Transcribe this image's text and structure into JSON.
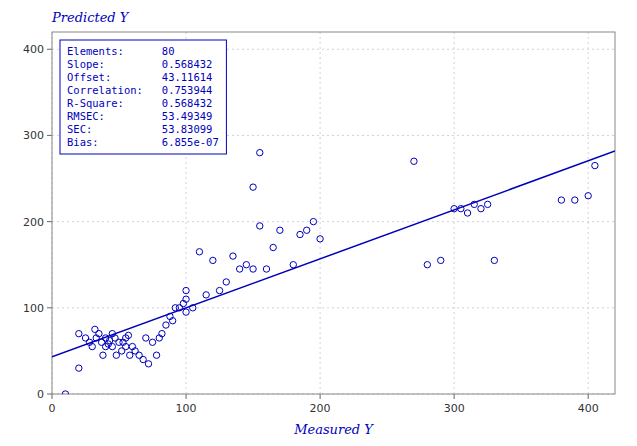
{
  "chart_data": {
    "type": "scatter",
    "title": "Predicted Y",
    "x_label": "Measured Y",
    "color": "#0000bb",
    "grid": true,
    "xlim": [
      0,
      420
    ],
    "ylim": [
      0,
      420
    ],
    "xticks": [
      0,
      100,
      200,
      300,
      400
    ],
    "yticks": [
      0,
      100,
      200,
      300,
      400
    ],
    "series": [
      {
        "type": "scatter",
        "marker": "open-circle",
        "color": "#0000bb",
        "x": [
          10,
          20,
          25,
          28,
          30,
          32,
          33,
          35,
          37,
          38,
          40,
          40,
          42,
          43,
          45,
          45,
          47,
          48,
          50,
          52,
          53,
          55,
          55,
          57,
          58,
          60,
          62,
          65,
          68,
          70,
          72,
          75,
          78,
          80,
          82,
          85,
          88,
          90,
          92,
          95,
          98,
          100,
          100,
          105,
          110,
          115,
          120,
          125,
          130,
          135,
          140,
          145,
          150,
          155,
          160,
          165,
          170,
          180,
          185,
          190,
          195,
          200,
          150,
          155,
          270,
          280,
          290,
          300,
          305,
          310,
          315,
          320,
          325,
          330,
          380,
          390,
          400,
          405,
          20,
          100
        ],
        "values": [
          0,
          70,
          65,
          60,
          55,
          75,
          65,
          70,
          60,
          45,
          55,
          65,
          58,
          62,
          55,
          70,
          65,
          45,
          60,
          50,
          60,
          65,
          55,
          68,
          45,
          55,
          50,
          45,
          40,
          65,
          35,
          60,
          45,
          65,
          70,
          80,
          90,
          85,
          100,
          100,
          105,
          110,
          95,
          100,
          165,
          115,
          155,
          120,
          130,
          160,
          145,
          150,
          145,
          195,
          145,
          170,
          190,
          150,
          185,
          190,
          200,
          180,
          240,
          280,
          270,
          150,
          155,
          215,
          215,
          210,
          220,
          215,
          220,
          155,
          225,
          225,
          230,
          265,
          30,
          120
        ]
      },
      {
        "type": "line",
        "line_style": "solid",
        "color": "#0000bb",
        "x": [
          0,
          420
        ],
        "values": [
          43.11614,
          281.85758
        ]
      }
    ],
    "annotations": [
      "Elements:      80",
      "Slope:         0.568432",
      "Offset:        43.11614",
      "Correlation:   0.753944",
      "R-Square:      0.568432",
      "RMSEC:         53.49349",
      "SEC:           53.83099",
      "Bias:          6.855e-07"
    ]
  }
}
